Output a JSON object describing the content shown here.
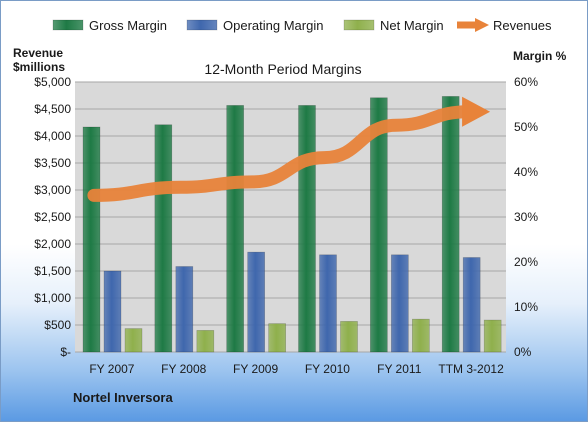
{
  "chart_data": {
    "type": "bar",
    "title": "12-Month Period Margins",
    "left_axis_label_line1": "Revenue",
    "left_axis_label_line2": "$millions",
    "right_axis_label": "Margin %",
    "footer": "Nortel Inversora",
    "categories": [
      "FY 2007",
      "FY 2008",
      "FY 2009",
      "FY 2010",
      "FY 2011",
      "TTM 3-2012"
    ],
    "left_ylim": [
      0,
      5000
    ],
    "left_ticks": [
      "$-",
      "$500",
      "$1,000",
      "$1,500",
      "$2,000",
      "$2,500",
      "$3,000",
      "$3,500",
      "$4,000",
      "$4,500",
      "$5,000"
    ],
    "right_ylim": [
      0,
      60
    ],
    "right_ticks": [
      "0%",
      "10%",
      "20%",
      "30%",
      "40%",
      "50%",
      "60%"
    ],
    "grid": true,
    "legend_position": "top",
    "series": [
      {
        "name": "Gross Margin",
        "axis": "right",
        "color": "#1e7a45",
        "values": [
          50,
          50.5,
          54.8,
          54.8,
          56.5,
          56.8
        ]
      },
      {
        "name": "Operating Margin",
        "axis": "right",
        "color": "#3f67ad",
        "values": [
          18,
          19,
          22.2,
          21.6,
          21.6,
          21
        ]
      },
      {
        "name": "Net Margin",
        "axis": "right",
        "color": "#8fb04c",
        "values": [
          5.2,
          4.8,
          6.3,
          6.8,
          7.3,
          7.1
        ]
      },
      {
        "name": "Revenues",
        "axis": "left",
        "type": "line",
        "color": "#e8833a",
        "values": [
          2900,
          3050,
          3150,
          3600,
          4200,
          4450
        ]
      }
    ]
  }
}
